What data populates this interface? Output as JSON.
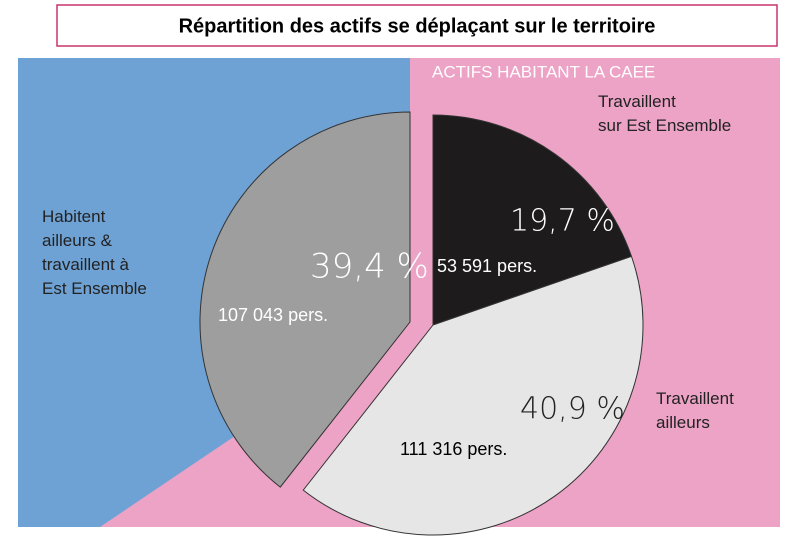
{
  "chart_data": {
    "type": "pie",
    "title": "Répartition des actifs se déplaçant sur le territoire",
    "subtitle": "ACTIFS HABITANT LA CAEE",
    "categories": [
      "Travaillent\nsur Est Ensemble",
      "Travaillent\nailleurs",
      "Habitent\nailleurs &\ntravaillent à\nEst Ensemble"
    ],
    "values": [
      19.7,
      40.9,
      39.4
    ],
    "value_labels": [
      "19,7 %",
      "40,9 %",
      "39,4 %"
    ],
    "counts": [
      53591,
      111316,
      107043
    ],
    "count_labels": [
      "53 591 pers.",
      "111 316 pers.",
      "107 043 pers."
    ],
    "colors": [
      "#1d1b1c",
      "#e6e6e6",
      "#9e9e9e"
    ],
    "explode": [
      false,
      false,
      true
    ]
  }
}
